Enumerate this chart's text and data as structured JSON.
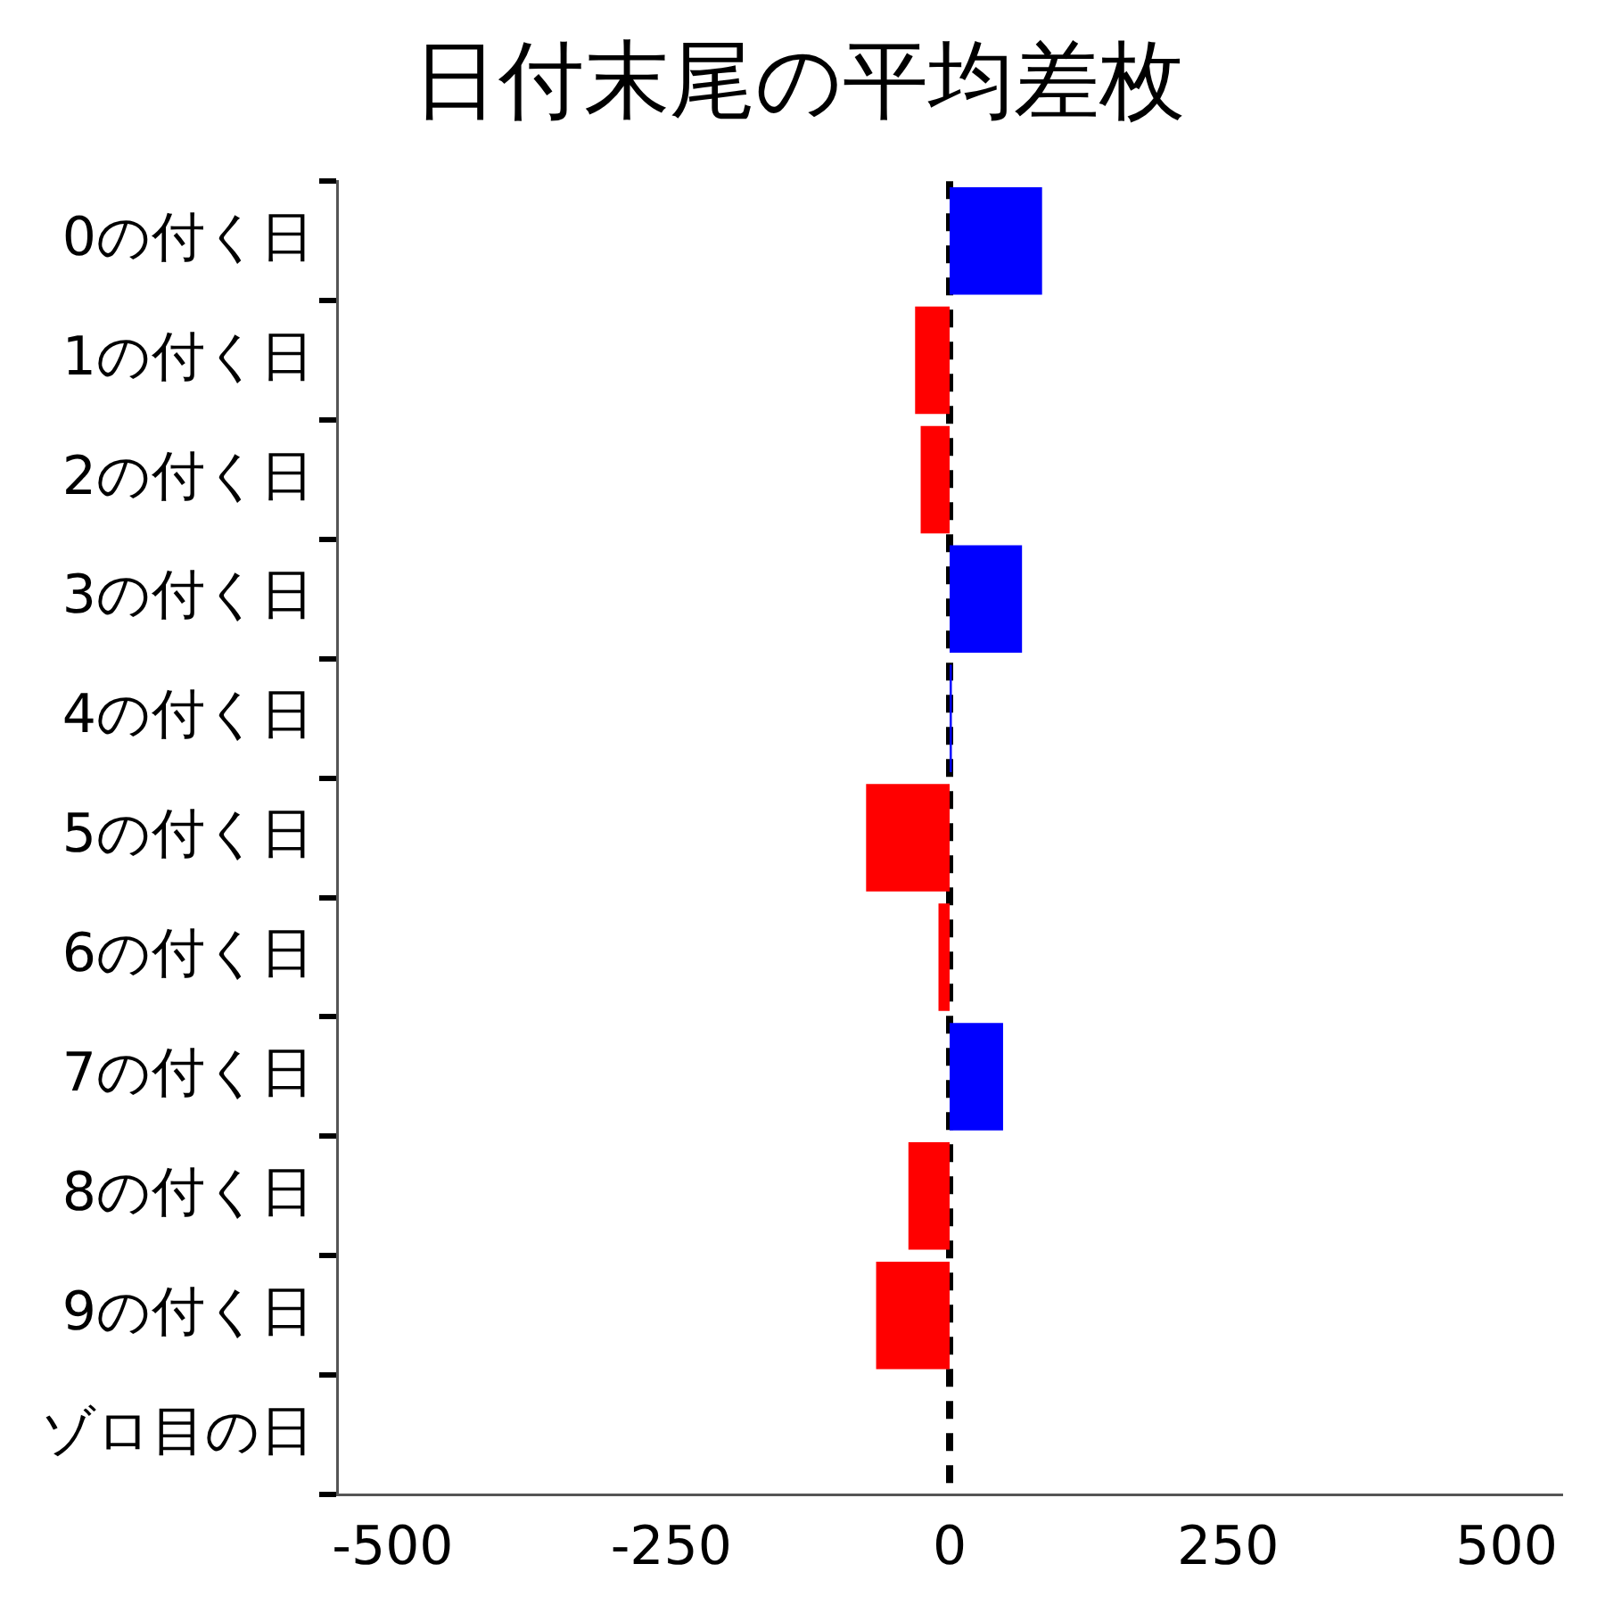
{
  "chart_data": {
    "type": "bar",
    "orientation": "horizontal",
    "title": "日付末尾の平均差枚",
    "categories": [
      "0の付く日",
      "1の付く日",
      "2の付く日",
      "3の付く日",
      "4の付く日",
      "5の付く日",
      "6の付く日",
      "7の付く日",
      "8の付く日",
      "9の付く日",
      "ゾロ目の日"
    ],
    "values": [
      83,
      -31,
      -26,
      65,
      2,
      -75,
      -10,
      48,
      -37,
      -66,
      null
    ],
    "colors": [
      "#0000ff",
      "#ff0000",
      "#ff0000",
      "#0000ff",
      "#0000ff",
      "#ff0000",
      "#ff0000",
      "#0000ff",
      "#ff0000",
      "#ff0000",
      "#ff0000"
    ],
    "xlim": [
      -550,
      550
    ],
    "xticks": [
      -500,
      -250,
      0,
      250,
      500
    ],
    "grid": false,
    "ref_lines": [
      {
        "axis": "x",
        "value": 0,
        "color": "#000000",
        "line_style": "dashed"
      }
    ]
  }
}
